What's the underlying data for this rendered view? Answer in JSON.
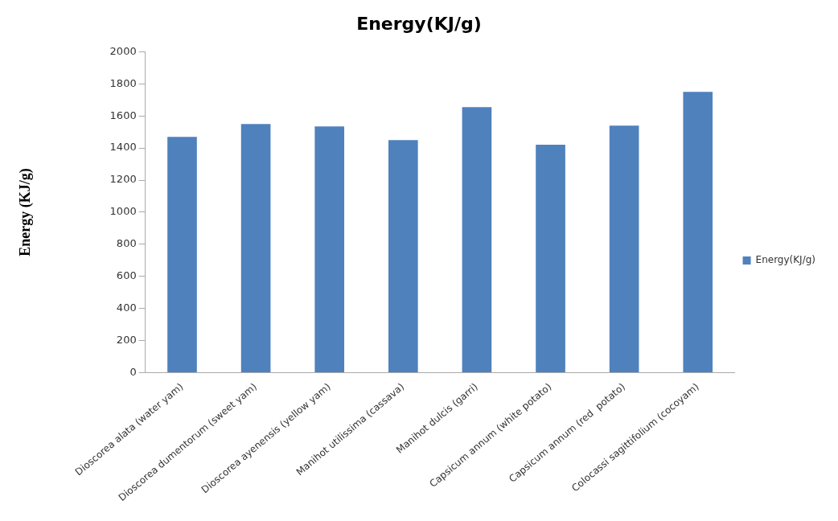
{
  "chart_data": {
    "type": "bar",
    "title": "Energy(KJ/g)",
    "ylabel": "Energy (KJ/g)",
    "categories": [
      "Dioscorea alata (water yam)",
      "Dioscorea dumentorum (sweet yam)",
      "Dioscorea ayenensis (yellow yam)",
      "Manihot utilissima (cassava)",
      "Manihot dulcis (garri)",
      "Capsicum annum (white potato)",
      "Capsicum annum (red  potato)",
      "Colocassi sagittifolium (cocoyam)"
    ],
    "series": [
      {
        "name": "Energy(KJ/g)",
        "color": "#4f81bd",
        "values": [
          1470,
          1550,
          1535,
          1450,
          1655,
          1420,
          1540,
          1750
        ]
      }
    ],
    "ylim": [
      0,
      2000
    ],
    "yticks": [
      0,
      200,
      400,
      600,
      800,
      1000,
      1200,
      1400,
      1600,
      1800,
      2000
    ],
    "grid": false,
    "legend": "right"
  }
}
